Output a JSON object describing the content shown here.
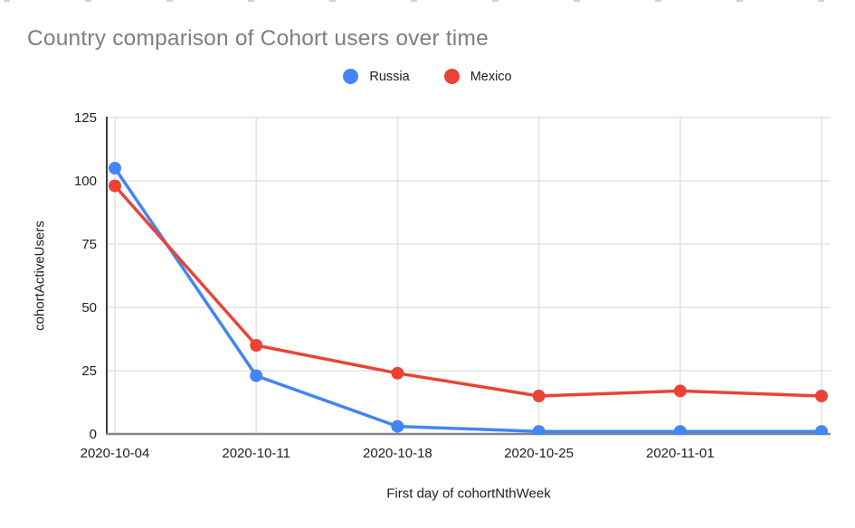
{
  "style": {
    "background": "#ffffff",
    "title_color": "#7e7e7e",
    "tick_label_color": "#202124",
    "grid_color": "#e2e2e2",
    "y_axis_color": "#3c3c3c",
    "x_axis_color": "#80868b",
    "russia_color": "#4285F4",
    "mexico_color": "#EA4335"
  },
  "chart_data": {
    "type": "line",
    "title": "Country comparison of Cohort users over time",
    "xlabel": "First day of cohortNthWeek",
    "ylabel": "cohortActiveUsers",
    "x_tick_labels": [
      "2020-10-04",
      "2020-10-11",
      "2020-10-18",
      "2020-10-25",
      "2020-11-01"
    ],
    "num_points": 6,
    "series": [
      {
        "name": "Russia",
        "color": "#4285F4",
        "values": [
          105,
          23,
          3,
          1,
          1,
          1
        ]
      },
      {
        "name": "Mexico",
        "color": "#EA4335",
        "values": [
          98,
          35,
          24,
          15,
          17,
          15
        ]
      }
    ],
    "ylim": [
      0,
      125
    ],
    "yticks": [
      0,
      25,
      50,
      75,
      100,
      125
    ],
    "grid": true,
    "legend_position": "top-center",
    "legend": [
      {
        "label": "Russia",
        "color": "#4285F4"
      },
      {
        "label": "Mexico",
        "color": "#EA4335"
      }
    ]
  }
}
